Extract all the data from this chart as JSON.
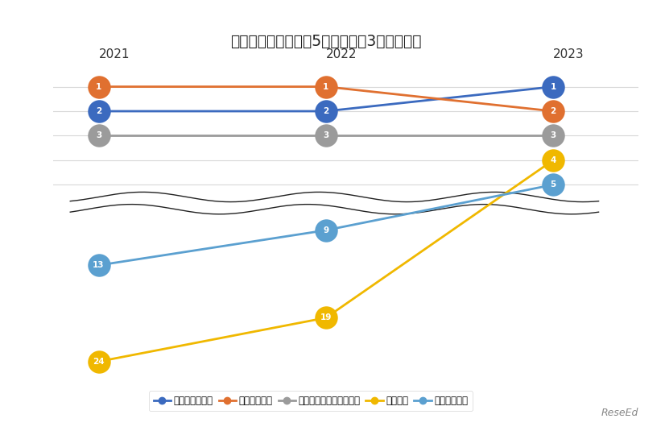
{
  "title": "「教育充実度」上位5大学　過去3年間の推移",
  "years": [
    2021,
    2022,
    2023
  ],
  "x_positions": {
    "2021": 0,
    "2022": 4,
    "2023": 8
  },
  "series": [
    {
      "name": "国際基督教大学",
      "ranks": [
        2,
        2,
        1
      ],
      "color": "#3b6abf",
      "zorder": 5
    },
    {
      "name": "国際教養大学",
      "ranks": [
        1,
        1,
        2
      ],
      "color": "#e07030",
      "zorder": 5
    },
    {
      "name": "立命館アジア太平洋大学",
      "ranks": [
        3,
        3,
        3
      ],
      "color": "#9b9b9b",
      "zorder": 5
    },
    {
      "name": "一橋大学",
      "ranks": [
        24,
        19,
        4
      ],
      "color": "#f0b800",
      "zorder": 4
    },
    {
      "name": "神田外語大学",
      "ranks": [
        13,
        9,
        5
      ],
      "color": "#5ba0d0",
      "zorder": 4
    }
  ],
  "grid_color": "#d8d8d8",
  "wave_color": "#222222",
  "title_fontsize": 13.5,
  "year_fontsize": 11,
  "marker_fontsize": 7.5,
  "legend_fontsize": 8.5
}
